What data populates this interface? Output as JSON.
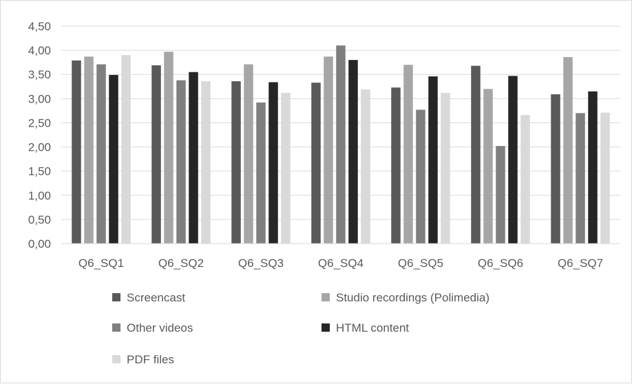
{
  "chart_data": {
    "type": "bar",
    "title": "",
    "xlabel": "",
    "ylabel": "",
    "ylim": [
      0,
      4.5
    ],
    "ytick_step": 0.5,
    "yticks": [
      "0,00",
      "0,50",
      "1,00",
      "1,50",
      "2,00",
      "2,50",
      "3,00",
      "3,50",
      "4,00",
      "4,50"
    ],
    "grid": true,
    "legend_position": "bottom",
    "categories": [
      "Q6_SQ1",
      "Q6_SQ2",
      "Q6_SQ3",
      "Q6_SQ4",
      "Q6_SQ5",
      "Q6_SQ6",
      "Q6_SQ7"
    ],
    "series": [
      {
        "name": "Screencast",
        "color": "#595959",
        "values": [
          3.79,
          3.69,
          3.36,
          3.33,
          3.23,
          3.68,
          3.09
        ]
      },
      {
        "name": "Studio recordings (Polimedia)",
        "color": "#a6a6a6",
        "values": [
          3.87,
          3.97,
          3.71,
          3.87,
          3.7,
          3.2,
          3.86
        ]
      },
      {
        "name": "Other videos",
        "color": "#7f7f7f",
        "values": [
          3.71,
          3.38,
          2.92,
          4.1,
          2.77,
          2.02,
          2.7
        ]
      },
      {
        "name": "HTML content",
        "color": "#262626",
        "values": [
          3.49,
          3.55,
          3.34,
          3.8,
          3.46,
          3.47,
          3.15
        ]
      },
      {
        "name": "PDF files",
        "color": "#d9d9d9",
        "values": [
          3.9,
          3.36,
          3.12,
          3.19,
          3.12,
          2.66,
          2.71
        ]
      }
    ]
  }
}
